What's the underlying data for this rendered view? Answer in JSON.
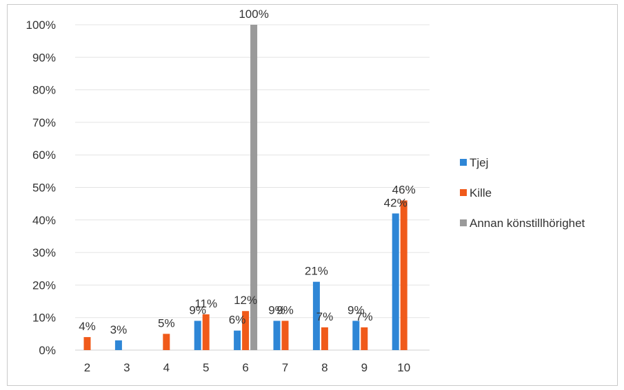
{
  "chart_data": {
    "type": "bar",
    "title": "",
    "xlabel": "",
    "ylabel": "",
    "categories": [
      "2",
      "3",
      "4",
      "5",
      "6",
      "7",
      "8",
      "9",
      "10"
    ],
    "ylim": [
      0,
      100
    ],
    "yticks": [
      "0%",
      "10%",
      "20%",
      "30%",
      "40%",
      "50%",
      "60%",
      "70%",
      "80%",
      "90%",
      "100%"
    ],
    "grid": true,
    "legend_position": "right",
    "series": [
      {
        "name": "Tjej",
        "color": "#2e86d6",
        "values": [
          0,
          3,
          0,
          9,
          6,
          9,
          21,
          9,
          42
        ],
        "labels": [
          "",
          "3%",
          "",
          "9%",
          "6%",
          "9%",
          "21%",
          "9%",
          "42%"
        ]
      },
      {
        "name": "Kille",
        "color": "#f05a1a",
        "values": [
          4,
          0,
          5,
          11,
          12,
          9,
          7,
          7,
          46
        ],
        "labels": [
          "4%",
          "",
          "5%",
          "11%",
          "12%",
          "9%",
          "7%",
          "7%",
          "46%"
        ]
      },
      {
        "name": "Annan könstillhörighet",
        "color": "#9a9a9a",
        "values": [
          0,
          0,
          0,
          0,
          100,
          0,
          0,
          0,
          0
        ],
        "labels": [
          "",
          "",
          "",
          "",
          "100%",
          "",
          "",
          "",
          ""
        ]
      }
    ]
  }
}
